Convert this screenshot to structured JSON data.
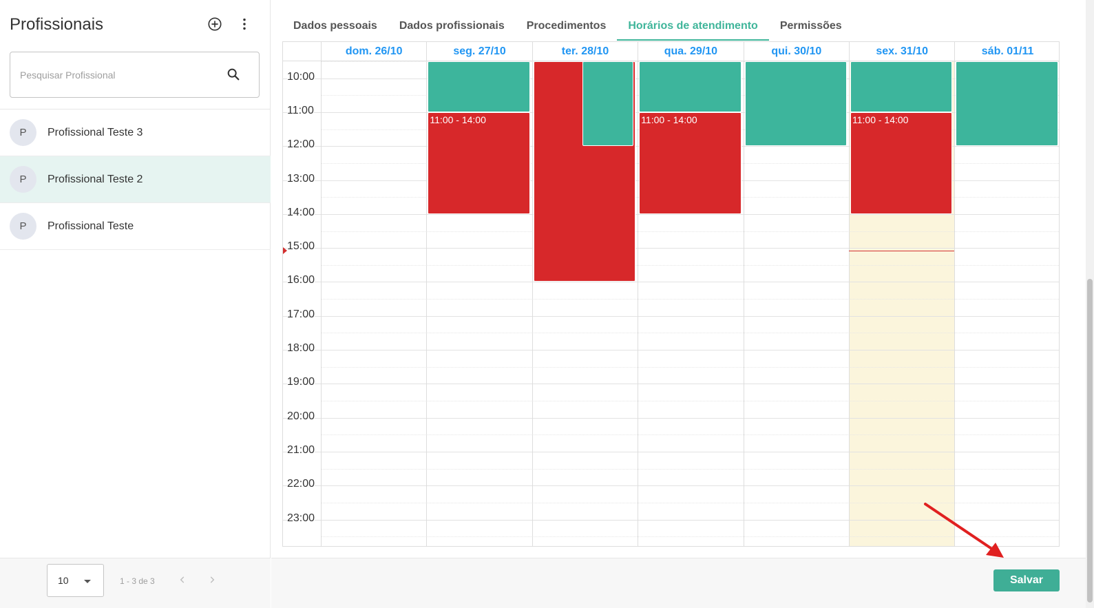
{
  "left_panel": {
    "title": "Profissionais",
    "search_placeholder": "Pesquisar Profissional",
    "professionals": [
      {
        "initial": "P",
        "name": "Profissional Teste 3",
        "selected": false
      },
      {
        "initial": "P",
        "name": "Profissional Teste 2",
        "selected": true
      },
      {
        "initial": "P",
        "name": "Profissional Teste",
        "selected": false
      }
    ],
    "pagination": {
      "page_size": "10",
      "range": "1 - 3 de 3"
    }
  },
  "tabs": [
    {
      "label": "Dados pessoais",
      "active": false
    },
    {
      "label": "Dados profissionais",
      "active": false
    },
    {
      "label": "Procedimentos",
      "active": false
    },
    {
      "label": "Horários de atendimento",
      "active": true
    },
    {
      "label": "Permissões",
      "active": false
    }
  ],
  "calendar": {
    "days": [
      "dom. 26/10",
      "seg. 27/10",
      "ter. 28/10",
      "qua. 29/10",
      "qui. 30/10",
      "sex. 31/10",
      "sáb. 01/11"
    ],
    "today_index": 5,
    "hours": [
      "10:00",
      "11:00",
      "12:00",
      "13:00",
      "14:00",
      "15:00",
      "16:00",
      "17:00",
      "18:00",
      "19:00",
      "20:00",
      "21:00",
      "22:00",
      "23:00"
    ],
    "now_time": "15:05",
    "availability_color": "#3db59c",
    "unavailable_color": "#d7282a",
    "today_highlight": "#fbf5dc",
    "blocks": [
      {
        "day": 1,
        "start": "09:30",
        "end": "11:00",
        "status": "available",
        "label": ""
      },
      {
        "day": 1,
        "start": "11:00",
        "end": "14:00",
        "status": "unavailable",
        "label": "11:00 - 14:00"
      },
      {
        "day": 2,
        "start": "09:30",
        "end": "16:00",
        "status": "unavailable",
        "label": "",
        "lane": "full"
      },
      {
        "day": 2,
        "start": "09:30",
        "end": "12:00",
        "status": "available",
        "label": "",
        "lane": "right"
      },
      {
        "day": 3,
        "start": "09:30",
        "end": "11:00",
        "status": "available",
        "label": ""
      },
      {
        "day": 3,
        "start": "11:00",
        "end": "14:00",
        "status": "unavailable",
        "label": "11:00 - 14:00"
      },
      {
        "day": 4,
        "start": "09:30",
        "end": "12:00",
        "status": "available",
        "label": ""
      },
      {
        "day": 5,
        "start": "09:30",
        "end": "11:00",
        "status": "available",
        "label": ""
      },
      {
        "day": 5,
        "start": "11:00",
        "end": "14:00",
        "status": "unavailable",
        "label": "11:00 - 14:00"
      },
      {
        "day": 6,
        "start": "09:30",
        "end": "12:00",
        "status": "available",
        "label": ""
      }
    ]
  },
  "footer": {
    "save_label": "Salvar"
  },
  "icons": {
    "add": "add-circle-icon",
    "more": "more-vertical-icon",
    "search": "search-icon",
    "annotation": "red-arrow-annotation"
  }
}
